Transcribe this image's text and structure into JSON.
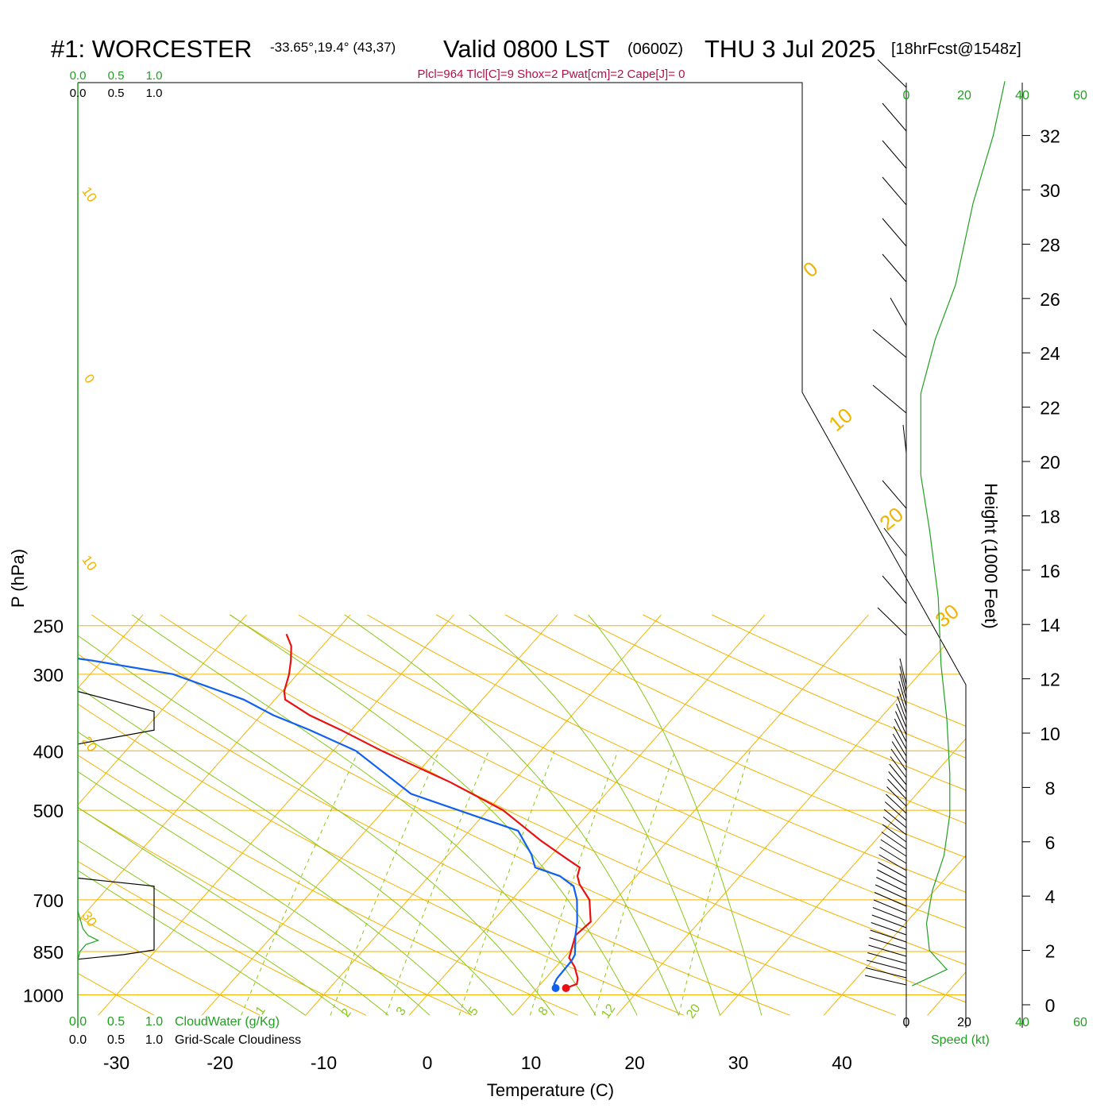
{
  "header": {
    "station": "#1: WORCESTER",
    "location": "-33.65°,19.4° (43,37)",
    "valid": "Valid 0800 LST",
    "zulu": "(0600Z)",
    "date": "THU 3 Jul 2025",
    "forecast": "[18hrFcst@1548z]",
    "indices": "Plcl=964 Tlcl[C]=9 Shox=2 Pwat[cm]=2 Cape[J]= 0"
  },
  "colors": {
    "isotherm": "#f0b400",
    "dry_adiabat": "#f0b400",
    "moist_adiabat": "#88c818",
    "mixing_ratio": "#88c818",
    "temperature": "#e81010",
    "dewpoint": "#1060f0",
    "cloudwater": "#20a020",
    "cloudiness": "#000000",
    "indices": "#b0104a",
    "speed": "#20a020"
  },
  "chart_data": {
    "type": "line",
    "title": "#1: WORCESTER",
    "xlabel": "Temperature (C)",
    "ylabel": "P (hPa)",
    "y2label": "Height (1000 Feet)",
    "x_ticks": [
      "-30",
      "-20",
      "-10",
      "0",
      "10",
      "20",
      "30",
      "40"
    ],
    "y_ticks": [
      "250",
      "300",
      "400",
      "500",
      "700",
      "850",
      "1000"
    ],
    "height_ticks": [
      "0",
      "2",
      "4",
      "6",
      "8",
      "10",
      "12",
      "14",
      "16",
      "18",
      "20",
      "22",
      "24",
      "26",
      "28",
      "30",
      "32"
    ],
    "dry_adiabat_labels": [
      "-30",
      "-20",
      "-10",
      "0",
      "10",
      "20",
      "30"
    ],
    "moist_labels": [
      "0",
      "10",
      "20",
      "30"
    ],
    "mixing_ratio_labels": [
      "1",
      "2",
      "3",
      "5",
      "8",
      "12",
      "20"
    ],
    "cloud_scale_top_green": [
      "0.0",
      "0.5",
      "1.0"
    ],
    "cloud_scale_top_black": [
      "0.0",
      "0.5",
      "1.0"
    ],
    "cloud_scale_bottom_green": [
      "0.0",
      "0.5",
      "1.0"
    ],
    "cloud_scale_bottom_black": [
      "0.0",
      "0.5",
      "1.0"
    ],
    "cloudwater_label": "CloudWater (g/Kg)",
    "cloudiness_label": "Grid-Scale Cloudiness",
    "speed_ticks": [
      "0",
      "20",
      "40",
      "60"
    ],
    "speed_label": "Speed (kt)",
    "temperature_profile": [
      {
        "p": 975,
        "t": 12.8
      },
      {
        "p": 960,
        "t": 13.5
      },
      {
        "p": 940,
        "t": 13.1
      },
      {
        "p": 900,
        "t": 11.8
      },
      {
        "p": 870,
        "t": 10.5
      },
      {
        "p": 800,
        "t": 9.2
      },
      {
        "p": 760,
        "t": 9.5
      },
      {
        "p": 700,
        "t": 7.5
      },
      {
        "p": 660,
        "t": 5.2
      },
      {
        "p": 640,
        "t": 4.3
      },
      {
        "p": 620,
        "t": 3.8
      },
      {
        "p": 600,
        "t": 1.8
      },
      {
        "p": 560,
        "t": -2.3
      },
      {
        "p": 500,
        "t": -8.5
      },
      {
        "p": 450,
        "t": -16.0
      },
      {
        "p": 400,
        "t": -25.3
      },
      {
        "p": 370,
        "t": -31.0
      },
      {
        "p": 350,
        "t": -35.3
      },
      {
        "p": 330,
        "t": -39.0
      },
      {
        "p": 320,
        "t": -39.8
      },
      {
        "p": 300,
        "t": -40.8
      },
      {
        "p": 285,
        "t": -41.8
      },
      {
        "p": 270,
        "t": -43.0
      },
      {
        "p": 258,
        "t": -44.5
      }
    ],
    "dewpoint_profile": [
      {
        "p": 975,
        "t": 11.8
      },
      {
        "p": 960,
        "t": 11.3
      },
      {
        "p": 940,
        "t": 11.1
      },
      {
        "p": 880,
        "t": 11.0
      },
      {
        "p": 860,
        "t": 10.8
      },
      {
        "p": 800,
        "t": 9.2
      },
      {
        "p": 760,
        "t": 8.2
      },
      {
        "p": 700,
        "t": 6.3
      },
      {
        "p": 665,
        "t": 4.8
      },
      {
        "p": 640,
        "t": 2.6
      },
      {
        "p": 620,
        "t": -0.5
      },
      {
        "p": 590,
        "t": -2.0
      },
      {
        "p": 540,
        "t": -5.3
      },
      {
        "p": 500,
        "t": -12.8
      },
      {
        "p": 470,
        "t": -18.8
      },
      {
        "p": 400,
        "t": -27.8
      },
      {
        "p": 370,
        "t": -34.0
      },
      {
        "p": 350,
        "t": -38.8
      },
      {
        "p": 330,
        "t": -43.0
      },
      {
        "p": 318,
        "t": -46.5
      },
      {
        "p": 300,
        "t": -52.0
      },
      {
        "p": 285,
        "t": -61.0
      },
      {
        "p": 270,
        "t": -72.0
      },
      {
        "p": 261,
        "t": -80.0
      }
    ],
    "wind_speed_profile": [
      {
        "h": 0.7,
        "kt": 2
      },
      {
        "h": 1.3,
        "kt": 14
      },
      {
        "h": 2.0,
        "kt": 8
      },
      {
        "h": 3.0,
        "kt": 7
      },
      {
        "h": 4.2,
        "kt": 9
      },
      {
        "h": 5.5,
        "kt": 13
      },
      {
        "h": 7.0,
        "kt": 15
      },
      {
        "h": 8.5,
        "kt": 15
      },
      {
        "h": 10.5,
        "kt": 14
      },
      {
        "h": 12.5,
        "kt": 12
      },
      {
        "h": 15.0,
        "kt": 11
      },
      {
        "h": 17.5,
        "kt": 8
      },
      {
        "h": 19.5,
        "kt": 5
      },
      {
        "h": 22.5,
        "kt": 5
      },
      {
        "h": 24.5,
        "kt": 10
      },
      {
        "h": 26.5,
        "kt": 17
      },
      {
        "h": 29.5,
        "kt": 23
      },
      {
        "h": 32.0,
        "kt": 30
      },
      {
        "h": 34.0,
        "kt": 34
      }
    ],
    "cloudiness_profile": [
      {
        "p": 320,
        "c": 0
      },
      {
        "p": 345,
        "c": 0.75
      },
      {
        "p": 370,
        "c": 0.75
      },
      {
        "p": 390,
        "c": 0
      },
      {
        "p": 645,
        "c": 0
      },
      {
        "p": 665,
        "c": 0.75
      },
      {
        "p": 845,
        "c": 0.75
      },
      {
        "p": 860,
        "c": 0.45
      },
      {
        "p": 875,
        "c": 0
      }
    ],
    "cloudwater_profile": [
      {
        "p": 730,
        "c": 0
      },
      {
        "p": 780,
        "c": 0.05
      },
      {
        "p": 800,
        "c": 0.1
      },
      {
        "p": 815,
        "c": 0.2
      },
      {
        "p": 828,
        "c": 0.08
      },
      {
        "p": 850,
        "c": 0.02
      },
      {
        "p": 880,
        "c": 0
      }
    ]
  }
}
